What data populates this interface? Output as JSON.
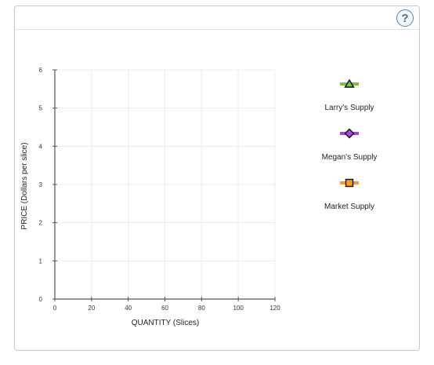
{
  "help": {
    "label": "?"
  },
  "chart_data": {
    "type": "line",
    "title": "",
    "xlabel": "QUANTITY (Slices)",
    "ylabel": "PRICE (Dollars per slice)",
    "xlim": [
      0,
      120
    ],
    "ylim": [
      0,
      6
    ],
    "xticks": [
      0,
      20,
      40,
      60,
      80,
      100,
      120
    ],
    "yticks": [
      0,
      1,
      2,
      3,
      4,
      5,
      6
    ],
    "grid": true,
    "legend_placement": "right",
    "series": [
      {
        "name": "Larry's Supply",
        "color": "#7bc043",
        "marker": "triangle",
        "marker_color": "#3a6b1f",
        "points": []
      },
      {
        "name": "Megan's Supply",
        "color": "#a64ad6",
        "marker": "diamond",
        "marker_color": "#6a2d8c",
        "points": []
      },
      {
        "name": "Market Supply",
        "color": "#f39c33",
        "marker": "square",
        "marker_color": "#b85c00",
        "points": []
      }
    ]
  }
}
